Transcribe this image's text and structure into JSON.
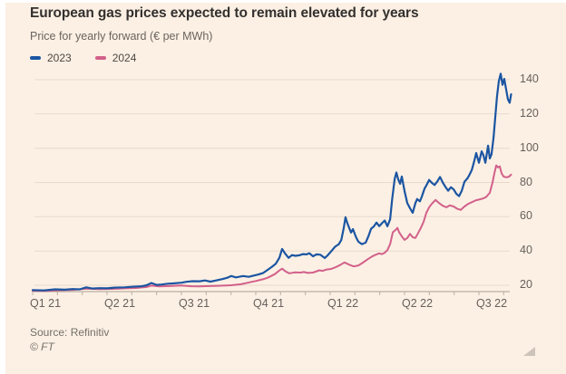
{
  "page": {
    "background": "#fcf0e4",
    "margin_color": "#ffffff"
  },
  "header": {
    "title": "European gas prices expected to remain elevated for years",
    "subtitle": "Price for yearly forward (€ per MWh)"
  },
  "legend": {
    "items": [
      {
        "label": "2023",
        "color": "#1b55a2"
      },
      {
        "label": "2024",
        "color": "#d2608a"
      }
    ]
  },
  "footer": {
    "source": "Source: Refinitiv",
    "copyright": "© FT"
  },
  "icons": {
    "resize_handle": "corner-triangle-icon"
  },
  "chart_data": {
    "type": "line",
    "title": "European gas prices expected to remain elevated for years",
    "ylabel": "€ per MWh",
    "grid": true,
    "legend_position": "top-left",
    "y_axis": {
      "side": "right",
      "ticks": [
        20,
        40,
        60,
        80,
        100,
        120,
        140
      ],
      "ylim": [
        16,
        146
      ]
    },
    "x_axis": {
      "labels": [
        "Q1 21",
        "Q2 21",
        "Q3 21",
        "Q4 21",
        "Q1 22",
        "Q2 22",
        "Q3 22"
      ],
      "t_unit": "months from start of Q1 2021",
      "minor_tick_every_months": 1,
      "tlim": [
        0,
        19.3
      ]
    },
    "series": [
      {
        "name": "2023",
        "color": "#1b55a2",
        "points": [
          [
            0,
            17.2
          ],
          [
            0.45,
            17.0
          ],
          [
            0.9,
            17.6
          ],
          [
            1.3,
            17.4
          ],
          [
            1.6,
            17.8
          ],
          [
            1.9,
            17.6
          ],
          [
            2.16,
            18.8
          ],
          [
            2.4,
            18.1
          ],
          [
            2.7,
            18.3
          ],
          [
            3.0,
            18.2
          ],
          [
            3.3,
            18.6
          ],
          [
            3.7,
            18.8
          ],
          [
            4.0,
            19.1
          ],
          [
            4.4,
            19.4
          ],
          [
            4.6,
            20.0
          ],
          [
            4.79,
            21.3
          ],
          [
            5.0,
            20.2
          ],
          [
            5.2,
            20.4
          ],
          [
            5.45,
            20.9
          ],
          [
            5.7,
            21.1
          ],
          [
            6.0,
            21.5
          ],
          [
            6.2,
            22.0
          ],
          [
            6.45,
            22.4
          ],
          [
            6.73,
            22.3
          ],
          [
            6.95,
            22.8
          ],
          [
            7.17,
            22.1
          ],
          [
            7.4,
            22.8
          ],
          [
            7.65,
            23.6
          ],
          [
            7.85,
            24.4
          ],
          [
            8.01,
            25.4
          ],
          [
            8.2,
            24.6
          ],
          [
            8.49,
            25.4
          ],
          [
            8.71,
            24.9
          ],
          [
            8.9,
            25.6
          ],
          [
            9.11,
            26.3
          ],
          [
            9.3,
            27.2
          ],
          [
            9.48,
            29.0
          ],
          [
            9.65,
            30.8
          ],
          [
            9.8,
            32.5
          ],
          [
            9.95,
            36.0
          ],
          [
            10.06,
            41.2
          ],
          [
            10.18,
            38.6
          ],
          [
            10.32,
            36.0
          ],
          [
            10.46,
            37.6
          ],
          [
            10.6,
            37.2
          ],
          [
            10.76,
            37.5
          ],
          [
            10.9,
            38.2
          ],
          [
            11.05,
            38.0
          ],
          [
            11.16,
            38.7
          ],
          [
            11.31,
            36.9
          ],
          [
            11.45,
            38.0
          ],
          [
            11.6,
            37.8
          ],
          [
            11.78,
            35.9
          ],
          [
            11.9,
            37.5
          ],
          [
            12.05,
            40.0
          ],
          [
            12.2,
            42.5
          ],
          [
            12.35,
            44.0
          ],
          [
            12.45,
            46.5
          ],
          [
            12.55,
            53.5
          ],
          [
            12.62,
            59.7
          ],
          [
            12.7,
            56.0
          ],
          [
            12.84,
            50.7
          ],
          [
            12.92,
            52.8
          ],
          [
            13.05,
            47.8
          ],
          [
            13.14,
            45.4
          ],
          [
            13.28,
            44.0
          ],
          [
            13.43,
            44.9
          ],
          [
            13.54,
            48.5
          ],
          [
            13.65,
            53.0
          ],
          [
            13.76,
            54.3
          ],
          [
            13.87,
            56.6
          ],
          [
            13.98,
            54.5
          ],
          [
            14.09,
            56.2
          ],
          [
            14.2,
            57.8
          ],
          [
            14.31,
            54.4
          ],
          [
            14.42,
            58.5
          ],
          [
            14.5,
            70.0
          ],
          [
            14.6,
            82.0
          ],
          [
            14.67,
            85.8
          ],
          [
            14.74,
            82.0
          ],
          [
            14.82,
            79.2
          ],
          [
            14.89,
            83.5
          ],
          [
            15.0,
            75.0
          ],
          [
            15.11,
            68.0
          ],
          [
            15.22,
            65.0
          ],
          [
            15.33,
            62.3
          ],
          [
            15.44,
            68.0
          ],
          [
            15.51,
            70.3
          ],
          [
            15.62,
            69.0
          ],
          [
            15.7,
            71.8
          ],
          [
            15.81,
            76.5
          ],
          [
            15.88,
            78.2
          ],
          [
            15.99,
            81.5
          ],
          [
            16.1,
            79.8
          ],
          [
            16.21,
            78.5
          ],
          [
            16.32,
            80.6
          ],
          [
            16.43,
            83.2
          ],
          [
            16.54,
            80.0
          ],
          [
            16.65,
            77.4
          ],
          [
            16.76,
            75.2
          ],
          [
            16.87,
            77.2
          ],
          [
            16.98,
            76.0
          ],
          [
            17.09,
            73.4
          ],
          [
            17.2,
            72.0
          ],
          [
            17.31,
            75.2
          ],
          [
            17.42,
            80.5
          ],
          [
            17.53,
            82.2
          ],
          [
            17.6,
            84.0
          ],
          [
            17.71,
            87.2
          ],
          [
            17.82,
            93.0
          ],
          [
            17.89,
            97.2
          ],
          [
            18.0,
            91.5
          ],
          [
            18.11,
            98.2
          ],
          [
            18.18,
            96.0
          ],
          [
            18.26,
            91.5
          ],
          [
            18.37,
            101.5
          ],
          [
            18.44,
            94.0
          ],
          [
            18.51,
            96.5
          ],
          [
            18.59,
            106.0
          ],
          [
            18.66,
            118.0
          ],
          [
            18.73,
            130.0
          ],
          [
            18.8,
            139.0
          ],
          [
            18.88,
            143.5
          ],
          [
            18.95,
            137.0
          ],
          [
            19.02,
            140.5
          ],
          [
            19.1,
            134.0
          ],
          [
            19.17,
            128.5
          ],
          [
            19.24,
            126.5
          ],
          [
            19.3,
            131.5
          ]
        ]
      },
      {
        "name": "2024",
        "color": "#d2608a",
        "points": [
          [
            0,
            16.8
          ],
          [
            0.5,
            16.7
          ],
          [
            1.0,
            17.1
          ],
          [
            1.61,
            17.3
          ],
          [
            2.16,
            18.0
          ],
          [
            2.71,
            17.8
          ],
          [
            3.2,
            17.9
          ],
          [
            3.7,
            18.2
          ],
          [
            4.17,
            18.4
          ],
          [
            4.6,
            19.0
          ],
          [
            4.79,
            19.8
          ],
          [
            5.1,
            19.3
          ],
          [
            5.5,
            19.5
          ],
          [
            6.0,
            19.9
          ],
          [
            6.4,
            19.4
          ],
          [
            6.73,
            19.3
          ],
          [
            7.1,
            19.5
          ],
          [
            7.46,
            19.7
          ],
          [
            8.01,
            20.0
          ],
          [
            8.4,
            20.6
          ],
          [
            8.74,
            21.7
          ],
          [
            9.0,
            22.5
          ],
          [
            9.29,
            23.5
          ],
          [
            9.48,
            24.4
          ],
          [
            9.77,
            26.5
          ],
          [
            9.95,
            28.6
          ],
          [
            10.06,
            29.7
          ],
          [
            10.21,
            28.0
          ],
          [
            10.35,
            27.0
          ],
          [
            10.57,
            27.5
          ],
          [
            10.8,
            27.4
          ],
          [
            10.94,
            27.7
          ],
          [
            11.1,
            27.2
          ],
          [
            11.31,
            27.4
          ],
          [
            11.56,
            28.7
          ],
          [
            11.7,
            28.4
          ],
          [
            11.86,
            29.2
          ],
          [
            12.04,
            29.5
          ],
          [
            12.22,
            30.5
          ],
          [
            12.4,
            31.8
          ],
          [
            12.58,
            33.3
          ],
          [
            12.77,
            32.0
          ],
          [
            12.95,
            31.0
          ],
          [
            13.14,
            31.6
          ],
          [
            13.32,
            33.2
          ],
          [
            13.5,
            35.0
          ],
          [
            13.69,
            36.8
          ],
          [
            13.87,
            38.0
          ],
          [
            13.98,
            38.6
          ],
          [
            14.09,
            38.2
          ],
          [
            14.2,
            39.0
          ],
          [
            14.31,
            40.5
          ],
          [
            14.42,
            44.0
          ],
          [
            14.53,
            50.9
          ],
          [
            14.64,
            52.3
          ],
          [
            14.71,
            53.5
          ],
          [
            14.78,
            51.0
          ],
          [
            14.89,
            48.5
          ],
          [
            15.0,
            46.5
          ],
          [
            15.11,
            47.6
          ],
          [
            15.22,
            50.0
          ],
          [
            15.33,
            48.0
          ],
          [
            15.44,
            47.6
          ],
          [
            15.55,
            50.5
          ],
          [
            15.66,
            53.5
          ],
          [
            15.77,
            57.0
          ],
          [
            15.88,
            62.3
          ],
          [
            15.99,
            65.5
          ],
          [
            16.1,
            67.6
          ],
          [
            16.25,
            69.8
          ],
          [
            16.39,
            68.0
          ],
          [
            16.54,
            66.4
          ],
          [
            16.69,
            65.5
          ],
          [
            16.83,
            66.6
          ],
          [
            16.98,
            66.0
          ],
          [
            17.13,
            64.6
          ],
          [
            17.27,
            64.0
          ],
          [
            17.42,
            66.0
          ],
          [
            17.57,
            67.5
          ],
          [
            17.71,
            68.5
          ],
          [
            17.86,
            69.5
          ],
          [
            18.0,
            70.0
          ],
          [
            18.15,
            70.6
          ],
          [
            18.29,
            71.5
          ],
          [
            18.44,
            74.0
          ],
          [
            18.55,
            80.0
          ],
          [
            18.62,
            85.0
          ],
          [
            18.7,
            90.0
          ],
          [
            18.77,
            88.8
          ],
          [
            18.84,
            89.4
          ],
          [
            18.91,
            85.5
          ],
          [
            18.99,
            83.5
          ],
          [
            19.1,
            83.0
          ],
          [
            19.21,
            83.4
          ],
          [
            19.3,
            84.6
          ]
        ]
      }
    ]
  }
}
